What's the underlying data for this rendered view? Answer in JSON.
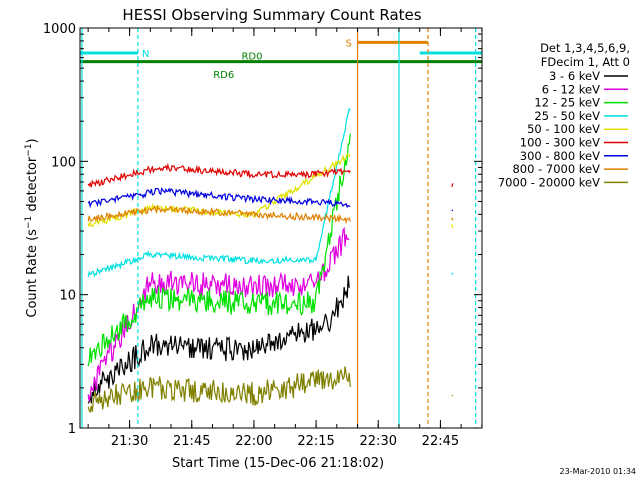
{
  "chart_data": {
    "type": "line",
    "title": "HESSI Observing Summary Count Rates",
    "xlabel": "Start Time (15-Dec-06 21:18:02)",
    "ylabel": "Count Rate (s⁻¹ detector⁻¹)",
    "ylabel_parts": {
      "prefix": "Count Rate (s",
      "exp1": "−1",
      "middle": " detector",
      "exp2": "−1",
      "suffix": ")"
    },
    "y_scale": "log",
    "ylim": [
      1,
      1000
    ],
    "xlim": [
      "21:18:02",
      "22:55:02"
    ],
    "y_ticks": [
      "1",
      "10",
      "100",
      "1000"
    ],
    "x_ticks": [
      "21:30",
      "21:45",
      "22:00",
      "22:15",
      "22:30",
      "22:45"
    ],
    "timestamp": "23-Mar-2010 01:34",
    "legend_header": [
      "Det 1,3,4,5,6,9,",
      "FDecim 1, Att 0"
    ],
    "series": [
      {
        "name": "3 - 6 keV",
        "color": "#000000",
        "values": [
          {
            "t": "21:20",
            "v": 1.8
          },
          {
            "t": "21:35",
            "v": 4.2
          },
          {
            "t": "22:00",
            "v": 3.8
          },
          {
            "t": "22:18",
            "v": 6.0
          },
          {
            "t": "22:23",
            "v": 12.0
          }
        ]
      },
      {
        "name": "6 - 12 keV",
        "color": "#e000e0",
        "values": [
          {
            "t": "21:20",
            "v": 1.8
          },
          {
            "t": "21:35",
            "v": 12.5
          },
          {
            "t": "22:00",
            "v": 11.5
          },
          {
            "t": "22:15",
            "v": 12.0
          },
          {
            "t": "22:23",
            "v": 30.0
          }
        ]
      },
      {
        "name": "12 - 25 keV",
        "color": "#00e000",
        "values": [
          {
            "t": "21:20",
            "v": 3.3
          },
          {
            "t": "21:35",
            "v": 9.5
          },
          {
            "t": "22:00",
            "v": 8.5
          },
          {
            "t": "22:15",
            "v": 8.8
          },
          {
            "t": "22:23",
            "v": 145.0
          },
          {
            "t": "22:47",
            "v": 3.3
          }
        ]
      },
      {
        "name": "25 - 50 keV",
        "color": "#00e0e0",
        "values": [
          {
            "t": "21:20",
            "v": 14.0
          },
          {
            "t": "21:35",
            "v": 20.0
          },
          {
            "t": "22:00",
            "v": 18.0
          },
          {
            "t": "22:15",
            "v": 18.5
          },
          {
            "t": "22:23",
            "v": 240.0
          },
          {
            "t": "22:48",
            "v": 14.5
          }
        ]
      },
      {
        "name": "50 - 100 keV",
        "color": "#e0e000",
        "values": [
          {
            "t": "21:20",
            "v": 33.0
          },
          {
            "t": "21:35",
            "v": 45.0
          },
          {
            "t": "22:00",
            "v": 40.0
          },
          {
            "t": "22:23",
            "v": 110.0
          },
          {
            "t": "22:48",
            "v": 33.0
          }
        ]
      },
      {
        "name": "100 - 300 keV",
        "color": "#e00000",
        "values": [
          {
            "t": "21:20",
            "v": 66.0
          },
          {
            "t": "21:37",
            "v": 90.0
          },
          {
            "t": "22:00",
            "v": 80.0
          },
          {
            "t": "22:15",
            "v": 80.0
          },
          {
            "t": "22:23",
            "v": 85.0
          },
          {
            "t": "22:48",
            "v": 68.0
          }
        ]
      },
      {
        "name": "300 - 800 keV",
        "color": "#0000e0",
        "values": [
          {
            "t": "21:20",
            "v": 47.0
          },
          {
            "t": "21:37",
            "v": 60.0
          },
          {
            "t": "22:00",
            "v": 52.0
          },
          {
            "t": "22:23",
            "v": 48.0
          },
          {
            "t": "22:48",
            "v": 45.0
          }
        ]
      },
      {
        "name": "800 - 7000 keV",
        "color": "#e08000",
        "values": [
          {
            "t": "21:20",
            "v": 37.0
          },
          {
            "t": "21:37",
            "v": 44.0
          },
          {
            "t": "22:00",
            "v": 40.0
          },
          {
            "t": "22:23",
            "v": 37.0
          },
          {
            "t": "22:48",
            "v": 36.0
          }
        ]
      },
      {
        "name": "7000 - 20000 keV",
        "color": "#808000",
        "values": [
          {
            "t": "21:20",
            "v": 1.6
          },
          {
            "t": "21:35",
            "v": 2.0
          },
          {
            "t": "22:00",
            "v": 1.8
          },
          {
            "t": "22:23",
            "v": 2.5
          },
          {
            "t": "22:48",
            "v": 1.6
          }
        ]
      }
    ],
    "flags": [
      {
        "label": "N",
        "color": "#00e0e0",
        "level": 650,
        "segments": [
          [
            "21:18:02",
            "21:32:00"
          ],
          [
            "22:40:00",
            "22:55:02"
          ]
        ]
      },
      {
        "label": "S",
        "color": "#e08000",
        "level": 780,
        "segments": [
          [
            "22:25:00",
            "22:42:00"
          ]
        ]
      },
      {
        "label": "RD0",
        "color": "#008000",
        "level": 560,
        "segments": [
          [
            "21:18:02",
            "22:55:02"
          ]
        ]
      },
      {
        "label": "RD6",
        "color": "#008000",
        "level": 500,
        "segments": []
      }
    ]
  }
}
